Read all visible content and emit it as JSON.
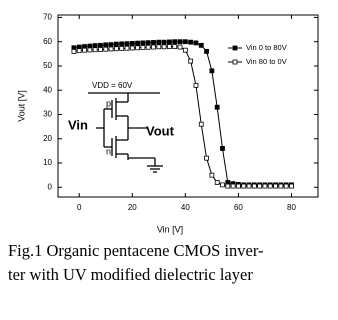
{
  "chart_data": {
    "type": "line",
    "xlabel": "Vin [V]",
    "ylabel": "Vout [V]",
    "x": [
      -2,
      0,
      2,
      4,
      6,
      8,
      10,
      12,
      14,
      16,
      18,
      20,
      22,
      24,
      26,
      28,
      30,
      32,
      34,
      36,
      38,
      40,
      42,
      44,
      46,
      48,
      50,
      52,
      54,
      56,
      58,
      60,
      62,
      64,
      66,
      68,
      70,
      72,
      74,
      76,
      78,
      80
    ],
    "series": [
      {
        "name": "Vin 0 to 80V",
        "color": "#000000",
        "marker": "filled-square",
        "values": [
          57.5,
          57.8,
          58,
          58.2,
          58.4,
          58.5,
          58.7,
          58.8,
          59,
          59.1,
          59.2,
          59.3,
          59.4,
          59.5,
          59.6,
          59.7,
          59.8,
          59.8,
          59.9,
          60,
          60,
          60,
          59.8,
          59.5,
          58.5,
          56,
          48,
          33,
          16,
          2,
          1.5,
          1.2,
          1,
          1,
          1,
          1,
          1,
          1,
          1,
          1,
          1,
          1
        ]
      },
      {
        "name": "Vin 80 to 0V",
        "color": "#000000",
        "marker": "open-square",
        "values": [
          56,
          56.3,
          56.5,
          56.6,
          56.7,
          56.8,
          56.9,
          57,
          57.1,
          57.2,
          57.3,
          57.4,
          57.5,
          57.6,
          57.7,
          57.8,
          57.9,
          57.9,
          58,
          58,
          57.8,
          56.5,
          52,
          42,
          26,
          12,
          5,
          2,
          1,
          0.5,
          0.5,
          0.5,
          0.5,
          0.5,
          0.5,
          0.5,
          0.5,
          0.5,
          0.5,
          0.5,
          0.5,
          0.5
        ]
      }
    ],
    "xlim": [
      -8,
      90
    ],
    "xticks": [
      0,
      20,
      40,
      60,
      80
    ],
    "ylim": [
      -4,
      71
    ],
    "yticks": [
      0,
      10,
      20,
      30,
      40,
      50,
      60,
      70
    ],
    "legend": "upper right",
    "annotations": {
      "vdd": "VDD = 60V",
      "p": "p",
      "n": "n",
      "vin": "Vin",
      "vout": "Vout"
    }
  },
  "caption": [
    "Fig.1 Organic pentacene CMOS inver-",
    "ter with UV modified dielectric layer"
  ]
}
